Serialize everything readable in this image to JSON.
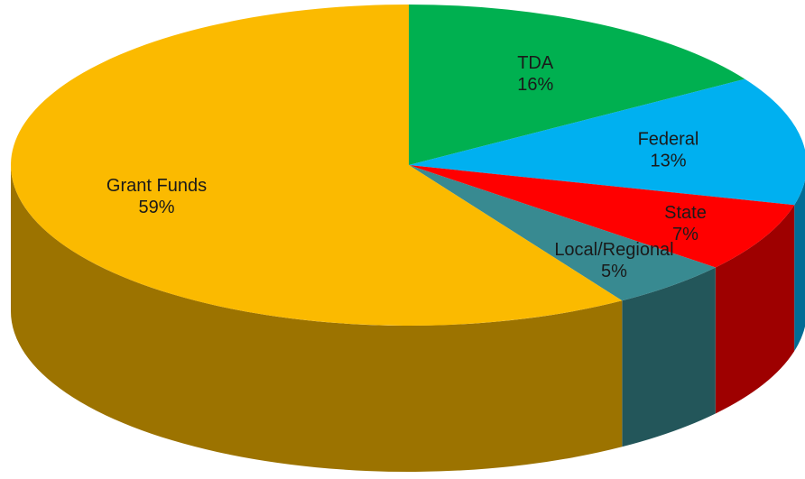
{
  "chart_data": {
    "type": "pie",
    "three_d": true,
    "categories": [
      "TDA",
      "Federal",
      "State",
      "Local/Regional",
      "Grant Funds"
    ],
    "values": [
      16,
      13,
      7,
      5,
      59
    ],
    "value_labels": [
      "16%",
      "13%",
      "7%",
      "5%",
      "59%"
    ],
    "colors": [
      "#00b050",
      "#00b0f0",
      "#ff0000",
      "#388a91",
      "#fbba00"
    ]
  }
}
